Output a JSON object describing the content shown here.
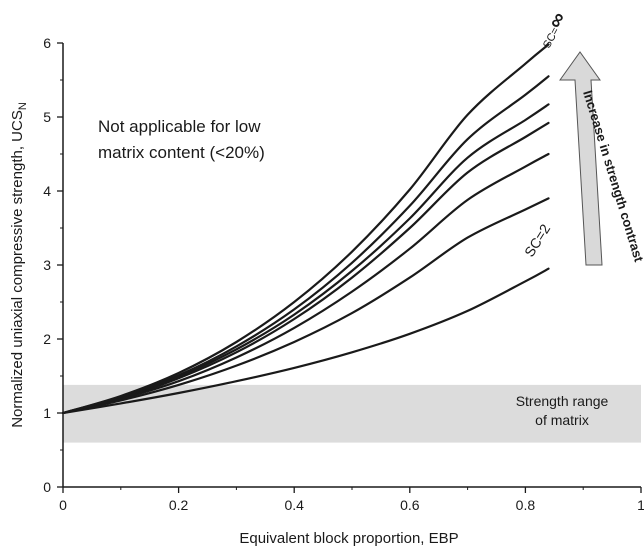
{
  "chart_data": {
    "type": "line",
    "xlabel": "Equivalent block proportion, EBP",
    "ylabel": "Normalized uniaxial compressive strength, UCS",
    "ylabel_subscript": "N",
    "xlim": [
      0,
      1
    ],
    "ylim": [
      0,
      6
    ],
    "x_ticks": [
      "0",
      "0.2",
      "0.4",
      "0.6",
      "0.8",
      "1"
    ],
    "y_ticks": [
      "0",
      "1",
      "2",
      "3",
      "4",
      "5",
      "6"
    ],
    "grid": false,
    "annotations": {
      "not_applicable_line1": "Not applicable for low",
      "not_applicable_line2": "matrix content (<20%)",
      "matrix_band_line1": "Strength range",
      "matrix_band_line2": "of matrix",
      "arrow_text": "Increase in strength contrast",
      "sc_low_label": "SC=2",
      "sc_high_label": "SC=",
      "sc_high_symbol": "∞"
    },
    "matrix_band": {
      "y_min": 0.6,
      "y_max": 1.38
    },
    "x": [
      0,
      0.1,
      0.2,
      0.3,
      0.4,
      0.5,
      0.6,
      0.7,
      0.8,
      0.84
    ],
    "series": [
      {
        "values": [
          1.0,
          1.13,
          1.27,
          1.43,
          1.61,
          1.82,
          2.07,
          2.38,
          2.78,
          2.95
        ]
      },
      {
        "values": [
          1.0,
          1.17,
          1.38,
          1.64,
          1.96,
          2.35,
          2.83,
          3.37,
          3.75,
          3.9
        ]
      },
      {
        "values": [
          1.0,
          1.19,
          1.43,
          1.75,
          2.15,
          2.64,
          3.22,
          3.88,
          4.33,
          4.5
        ]
      },
      {
        "values": [
          1.0,
          1.2,
          1.47,
          1.82,
          2.27,
          2.83,
          3.5,
          4.25,
          4.73,
          4.92
        ]
      },
      {
        "values": [
          1.0,
          1.21,
          1.49,
          1.86,
          2.33,
          2.92,
          3.63,
          4.45,
          4.96,
          5.17
        ]
      },
      {
        "values": [
          1.0,
          1.22,
          1.51,
          1.9,
          2.4,
          3.03,
          3.8,
          4.7,
          5.3,
          5.55
        ]
      },
      {
        "values": [
          1.0,
          1.23,
          1.54,
          1.96,
          2.5,
          3.18,
          4.02,
          5.03,
          5.72,
          5.98
        ]
      }
    ],
    "colors": {
      "band": "#dcdcdc",
      "line": "#1a1a1a",
      "arrow_fill": "#d9d9d9"
    }
  }
}
